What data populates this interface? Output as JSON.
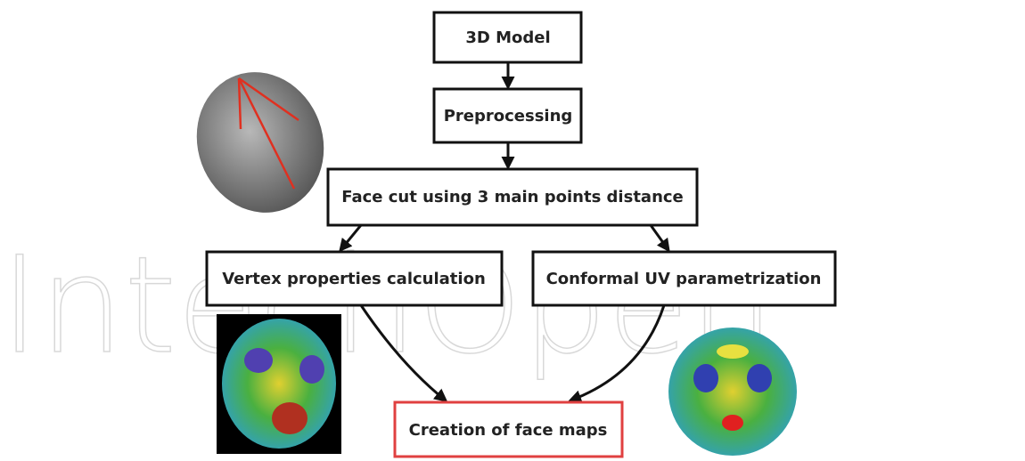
{
  "watermark": "IntechOpen",
  "nodes": [
    {
      "label": "3D Model"
    },
    {
      "label": "Preprocessing"
    },
    {
      "label": "Face cut using 3 main points distance"
    },
    {
      "label": "Vertex properties calculation"
    },
    {
      "label": "Conformal UV parametrization"
    },
    {
      "label": "Creation of face maps"
    }
  ]
}
